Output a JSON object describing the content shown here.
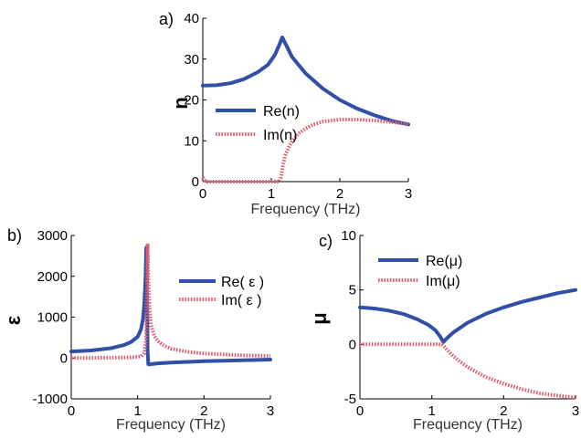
{
  "chart_data": [
    {
      "type": "line",
      "panel_label": "a)",
      "xlabel": "Frequency (THz)",
      "ylabel": "n",
      "xlim": [
        0,
        3
      ],
      "ylim": [
        0,
        40
      ],
      "xticks": [
        "0",
        "1",
        "2",
        "3"
      ],
      "yticks": [
        "0",
        "10",
        "20",
        "30",
        "40"
      ],
      "legend_position": "center-left",
      "series": [
        {
          "name": "Re(n)",
          "color": "#3050a8",
          "style": "solid",
          "x": [
            0,
            0.2,
            0.4,
            0.6,
            0.8,
            0.95,
            1.05,
            1.12,
            1.16,
            1.2,
            1.3,
            1.5,
            1.75,
            2.0,
            2.25,
            2.5,
            2.75,
            3.0
          ],
          "y": [
            23.5,
            23.6,
            24.1,
            25.1,
            26.8,
            28.6,
            31.0,
            33.6,
            35.3,
            34.0,
            30.6,
            26.5,
            22.8,
            20.0,
            17.9,
            16.3,
            14.9,
            14.0
          ]
        },
        {
          "name": "Im(n)",
          "color": "#e06070",
          "style": "dotted",
          "x": [
            0,
            0.02,
            0.04,
            0.06,
            1.12,
            1.14,
            1.17,
            1.2,
            1.25,
            1.3,
            1.4,
            1.5,
            1.6,
            1.75,
            2.0,
            2.25,
            2.5,
            2.75,
            3.0
          ],
          "y": [
            1.0,
            0.5,
            0.2,
            0,
            0,
            1.0,
            4.0,
            6.3,
            8.3,
            9.8,
            11.8,
            13.0,
            13.9,
            14.7,
            15.2,
            15.2,
            15.0,
            14.6,
            14.1
          ]
        }
      ]
    },
    {
      "type": "line",
      "panel_label": "b)",
      "xlabel": "Frequency (THz)",
      "ylabel": "ε",
      "xlim": [
        0,
        3
      ],
      "ylim": [
        -1000,
        3000
      ],
      "xticks": [
        "0",
        "1",
        "2",
        "3"
      ],
      "yticks": [
        "-1000",
        "0",
        "1000",
        "2000",
        "3000"
      ],
      "legend_position": "center-right",
      "series": [
        {
          "name": "Re( ε )",
          "color": "#3050a8",
          "style": "solid",
          "x": [
            0,
            0.3,
            0.6,
            0.8,
            0.9,
            1.0,
            1.05,
            1.08,
            1.1,
            1.12,
            1.13,
            1.14,
            1.15,
            1.16,
            1.18,
            1.2,
            1.3,
            1.5,
            2.0,
            2.5,
            3.0
          ],
          "y": [
            160,
            185,
            240,
            320,
            390,
            520,
            700,
            950,
            1300,
            2000,
            2700,
            2000,
            200,
            -150,
            -160,
            -150,
            -130,
            -110,
            -80,
            -60,
            -40
          ]
        },
        {
          "name": "Im( ε )",
          "color": "#e06070",
          "style": "dotted",
          "x": [
            0,
            0.5,
            0.9,
            1.05,
            1.1,
            1.13,
            1.15,
            1.16,
            1.18,
            1.2,
            1.25,
            1.3,
            1.4,
            1.5,
            1.75,
            2.0,
            2.5,
            3.0
          ],
          "y": [
            0,
            5,
            15,
            40,
            120,
            500,
            2800,
            2000,
            1200,
            800,
            550,
            420,
            300,
            230,
            150,
            110,
            70,
            50
          ]
        }
      ]
    },
    {
      "type": "line",
      "panel_label": "c)",
      "xlabel": "Frequency (THz)",
      "ylabel": "μ",
      "xlim": [
        0,
        3
      ],
      "ylim": [
        -5,
        10
      ],
      "xticks": [
        "0",
        "1",
        "2",
        "3"
      ],
      "yticks": [
        "-5",
        "0",
        "5",
        "10"
      ],
      "legend_position": "top-left",
      "series": [
        {
          "name": "Re(μ)",
          "color": "#3050a8",
          "style": "solid",
          "x": [
            0,
            0.2,
            0.4,
            0.6,
            0.8,
            0.95,
            1.05,
            1.12,
            1.16,
            1.2,
            1.3,
            1.5,
            1.75,
            2.0,
            2.25,
            2.5,
            2.75,
            3.0
          ],
          "y": [
            3.4,
            3.3,
            3.1,
            2.8,
            2.3,
            1.8,
            1.3,
            0.7,
            0.2,
            0.5,
            1.1,
            2.0,
            2.8,
            3.4,
            3.9,
            4.3,
            4.7,
            5.0
          ]
        },
        {
          "name": "Im(μ)",
          "color": "#e06070",
          "style": "dotted",
          "x": [
            0,
            0.5,
            1.0,
            1.14,
            1.16,
            1.2,
            1.3,
            1.5,
            1.75,
            2.0,
            2.25,
            2.5,
            2.75,
            3.0
          ],
          "y": [
            0,
            0,
            0,
            0,
            -0.1,
            -0.4,
            -1.1,
            -2.1,
            -3.0,
            -3.6,
            -4.1,
            -4.5,
            -4.7,
            -4.9
          ]
        }
      ]
    }
  ]
}
